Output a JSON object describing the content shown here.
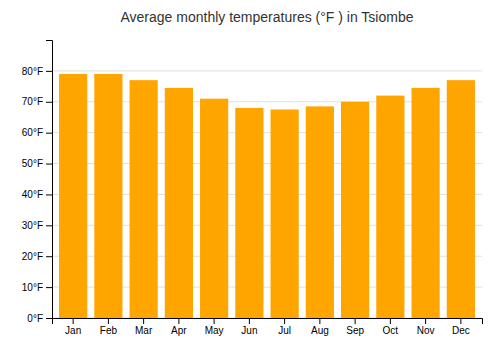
{
  "chart_data": {
    "type": "bar",
    "title": "Average monthly temperatures (°F ) in Tsiombe",
    "categories": [
      "Jan",
      "Feb",
      "Mar",
      "Apr",
      "May",
      "Jun",
      "Jul",
      "Aug",
      "Sep",
      "Oct",
      "Nov",
      "Dec"
    ],
    "values": [
      79,
      79,
      77,
      74.5,
      71,
      68,
      67.5,
      68.5,
      70,
      72,
      74.5,
      77
    ],
    "color": "#FFA500",
    "ylim": [
      0,
      90
    ],
    "yticks": [
      {
        "value": 0,
        "label": "0°F"
      },
      {
        "value": 10,
        "label": "10°F"
      },
      {
        "value": 20,
        "label": "20°F"
      },
      {
        "value": 30,
        "label": "30°F"
      },
      {
        "value": 40,
        "label": "40°F"
      },
      {
        "value": 50,
        "label": "50°F"
      },
      {
        "value": 60,
        "label": "60°F"
      },
      {
        "value": 70,
        "label": "70°F"
      },
      {
        "value": 80,
        "label": "80°F"
      }
    ],
    "grid": true
  }
}
